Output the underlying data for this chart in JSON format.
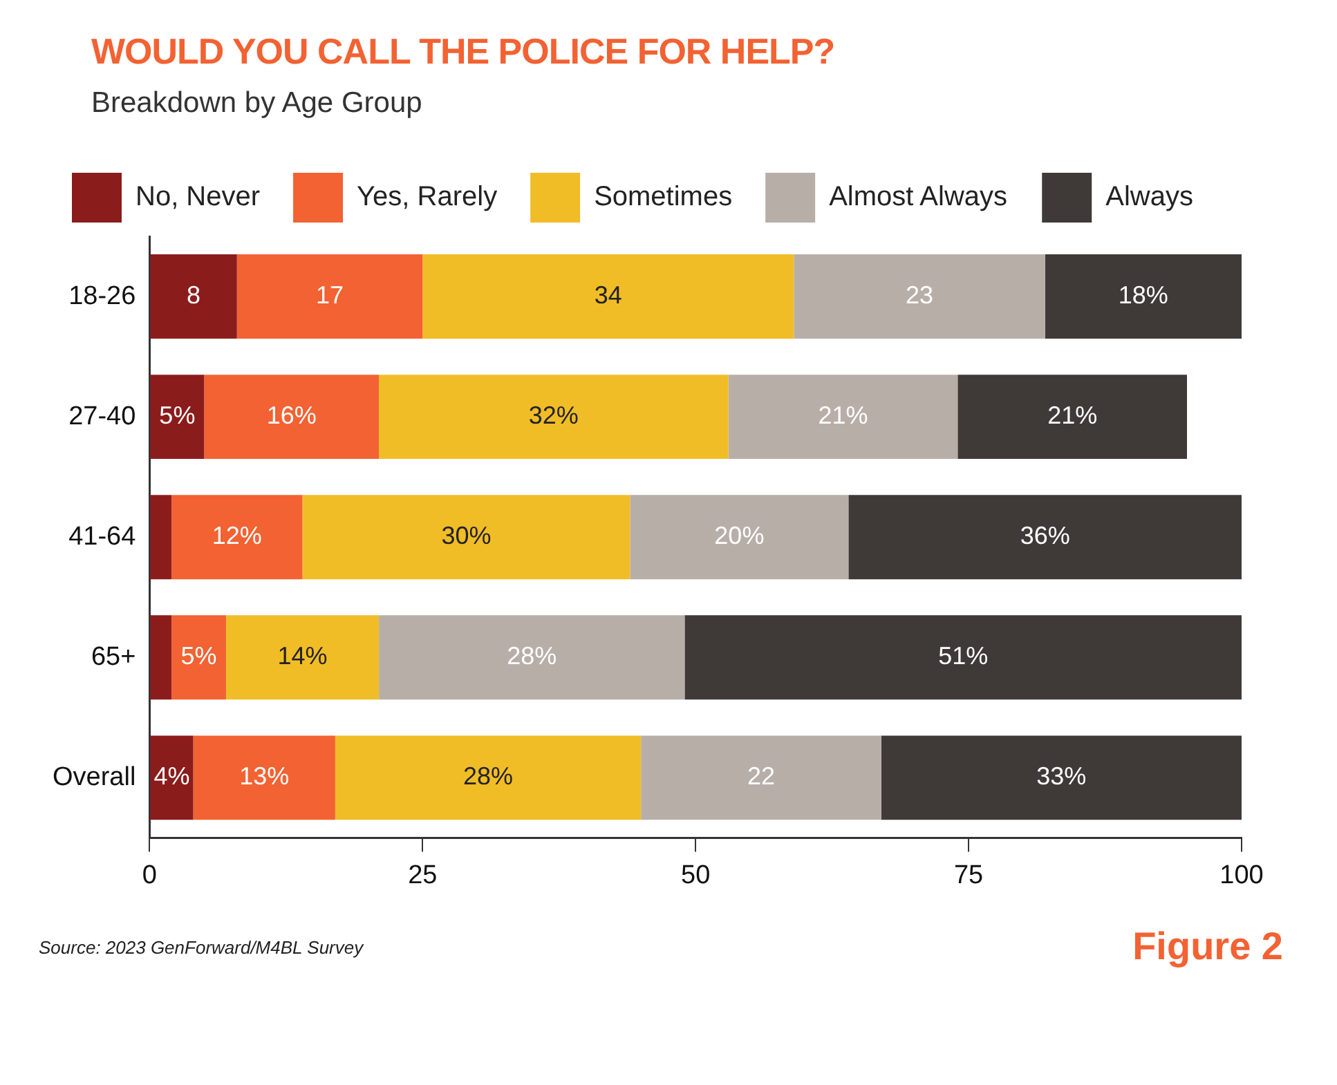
{
  "chart_data": {
    "type": "bar",
    "orientation": "horizontal",
    "stacked": true,
    "title": "WOULD YOU CALL THE POLICE FOR HELP?",
    "subtitle": "Breakdown by Age Group",
    "categories": [
      "18-26",
      "27-40",
      "41-64",
      "65+",
      "Overall"
    ],
    "series": [
      {
        "name": "No, Never",
        "color": "#8b1c1c",
        "values": [
          8,
          5,
          2,
          2,
          4
        ],
        "value_labels": [
          "8",
          "5%",
          null,
          null,
          "4%"
        ]
      },
      {
        "name": "Yes, Rarely",
        "color": "#f26233",
        "values": [
          17,
          16,
          12,
          5,
          13
        ],
        "value_labels": [
          "17",
          "16%",
          "12%",
          "5%",
          "13%"
        ]
      },
      {
        "name": "Sometimes",
        "color": "#f1bd27",
        "values": [
          34,
          32,
          30,
          14,
          28
        ],
        "value_labels": [
          "34",
          "32%",
          "30%",
          "14%",
          "28%"
        ]
      },
      {
        "name": "Almost Always",
        "color": "#b8aea8",
        "values": [
          23,
          21,
          20,
          28,
          22
        ],
        "value_labels": [
          "23",
          "21%",
          "20%",
          "28%",
          "22"
        ]
      },
      {
        "name": "Always",
        "color": "#3f3a38",
        "values": [
          18,
          21,
          36,
          51,
          33
        ],
        "value_labels": [
          "18%",
          "21%",
          "36%",
          "51%",
          "33%"
        ]
      }
    ],
    "xlim": [
      0,
      100
    ],
    "xticks": [
      0,
      25,
      50,
      75,
      100
    ],
    "grid": false,
    "legend": "top",
    "annotations": [
      "Source: 2023 GenForward/M4BL Survey",
      "Figure 2"
    ]
  }
}
